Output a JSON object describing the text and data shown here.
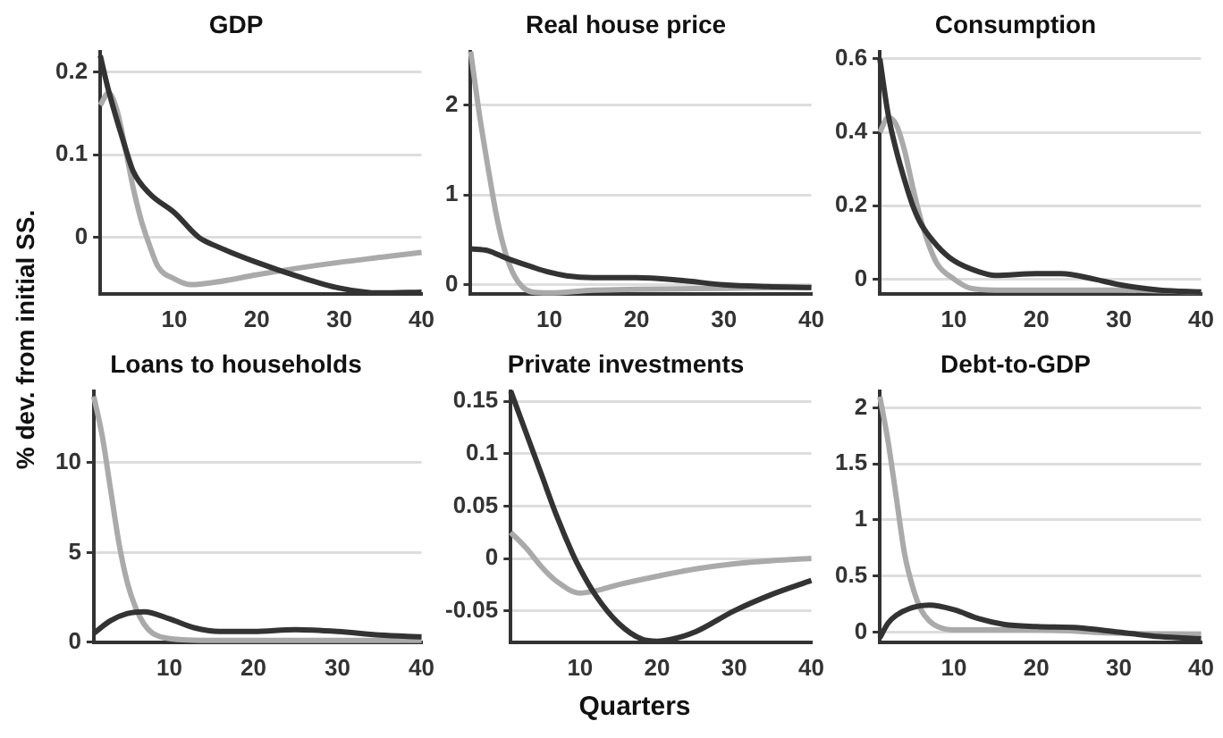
{
  "chart_data": [
    {
      "type": "line",
      "title": "GDP",
      "xlim": [
        1,
        40
      ],
      "xticks": [
        10,
        20,
        30,
        40
      ],
      "ylim": [
        -0.068,
        0.225
      ],
      "yticks": [
        0,
        0.1,
        0.2
      ],
      "grid": "y",
      "marker": "none",
      "series": [
        {
          "color": "#333333",
          "x": [
            1,
            2,
            4,
            5,
            7,
            10,
            13,
            15,
            20,
            25,
            30,
            35,
            40
          ],
          "values": [
            0.22,
            0.178,
            0.11,
            0.08,
            0.053,
            0.03,
            0.0,
            -0.01,
            -0.03,
            -0.047,
            -0.061,
            -0.067,
            -0.066
          ]
        },
        {
          "color": "#aaaaaa",
          "x": [
            1,
            2,
            3,
            4,
            5,
            6,
            7,
            8,
            10,
            12,
            15,
            20,
            25,
            30,
            35,
            40
          ],
          "values": [
            0.16,
            0.175,
            0.155,
            0.11,
            0.06,
            0.02,
            -0.01,
            -0.035,
            -0.05,
            -0.057,
            -0.054,
            -0.045,
            -0.037,
            -0.03,
            -0.024,
            -0.018
          ]
        }
      ]
    },
    {
      "type": "line",
      "title": "Real house price",
      "xlim": [
        1,
        40
      ],
      "xticks": [
        10,
        20,
        30,
        40
      ],
      "ylim": [
        -0.1,
        2.6
      ],
      "yticks": [
        0,
        1,
        2
      ],
      "grid": "y",
      "marker": "none",
      "series": [
        {
          "color": "#333333",
          "x": [
            1,
            3,
            5,
            8,
            10,
            12,
            15,
            20,
            25,
            30,
            35,
            40
          ],
          "values": [
            0.4,
            0.38,
            0.3,
            0.2,
            0.14,
            0.1,
            0.08,
            0.08,
            0.05,
            0.0,
            -0.02,
            -0.03
          ]
        },
        {
          "color": "#aaaaaa",
          "x": [
            1,
            2,
            3,
            4,
            5,
            6,
            7,
            8,
            10,
            15,
            20,
            30,
            40
          ],
          "values": [
            2.6,
            1.9,
            1.3,
            0.75,
            0.35,
            0.1,
            -0.03,
            -0.08,
            -0.09,
            -0.06,
            -0.05,
            -0.04,
            -0.03
          ]
        }
      ]
    },
    {
      "type": "line",
      "title": "Consumption",
      "xlim": [
        1,
        40
      ],
      "xticks": [
        10,
        20,
        30,
        40
      ],
      "ylim": [
        -0.04,
        0.62
      ],
      "yticks": [
        0,
        0.2,
        0.4,
        0.6
      ],
      "grid": "y",
      "marker": "none",
      "series": [
        {
          "color": "#333333",
          "x": [
            1,
            2,
            3,
            4,
            5,
            6,
            8,
            10,
            13,
            15,
            20,
            23,
            27,
            30,
            35,
            40
          ],
          "values": [
            0.6,
            0.45,
            0.35,
            0.27,
            0.2,
            0.15,
            0.09,
            0.05,
            0.02,
            0.01,
            0.015,
            0.015,
            0.0,
            -0.015,
            -0.03,
            -0.035
          ]
        },
        {
          "color": "#aaaaaa",
          "x": [
            1,
            2,
            3,
            4,
            5,
            6,
            7,
            8,
            10,
            12,
            15,
            20,
            30,
            40
          ],
          "values": [
            0.4,
            0.44,
            0.42,
            0.35,
            0.25,
            0.16,
            0.09,
            0.04,
            0.0,
            -0.025,
            -0.03,
            -0.03,
            -0.03,
            -0.035
          ]
        }
      ]
    },
    {
      "type": "line",
      "title": "Loans to households",
      "ylabel": "% dev. from initial SS.",
      "xlim": [
        1,
        40
      ],
      "xticks": [
        10,
        20,
        30,
        40
      ],
      "ylim": [
        0,
        14
      ],
      "yticks": [
        0,
        5,
        10
      ],
      "grid": "y",
      "marker": "none",
      "series": [
        {
          "color": "#333333",
          "x": [
            1,
            3,
            5,
            7,
            10,
            13,
            16,
            20,
            25,
            30,
            35,
            40
          ],
          "values": [
            0.5,
            1.2,
            1.6,
            1.7,
            1.3,
            0.8,
            0.6,
            0.6,
            0.7,
            0.6,
            0.4,
            0.3
          ]
        },
        {
          "color": "#aaaaaa",
          "x": [
            1,
            2,
            3,
            4,
            5,
            6,
            7,
            8,
            10,
            15,
            20,
            30,
            40
          ],
          "values": [
            13.7,
            11.5,
            8.5,
            5.5,
            3.3,
            1.9,
            1.0,
            0.5,
            0.2,
            0.1,
            0.1,
            0.1,
            0.1
          ]
        }
      ]
    },
    {
      "type": "line",
      "title": "Private investments",
      "xlabel": "Quarters",
      "xlim": [
        1,
        40
      ],
      "xticks": [
        10,
        20,
        30,
        40
      ],
      "ylim": [
        -0.08,
        0.16
      ],
      "yticks": [
        -0.05,
        0,
        0.05,
        0.1,
        0.15
      ],
      "grid": "y",
      "marker": "none",
      "series": [
        {
          "color": "#333333",
          "x": [
            1,
            3,
            5,
            7,
            9,
            10,
            12,
            15,
            18,
            20,
            22,
            25,
            30,
            35,
            40
          ],
          "values": [
            0.16,
            0.12,
            0.08,
            0.04,
            0.005,
            -0.01,
            -0.035,
            -0.062,
            -0.077,
            -0.079,
            -0.077,
            -0.07,
            -0.05,
            -0.034,
            -0.021
          ]
        },
        {
          "color": "#aaaaaa",
          "x": [
            1,
            3,
            5,
            7,
            10,
            12,
            15,
            20,
            25,
            30,
            35,
            40
          ],
          "values": [
            0.025,
            0.01,
            -0.008,
            -0.022,
            -0.033,
            -0.031,
            -0.025,
            -0.017,
            -0.01,
            -0.005,
            -0.002,
            0.0
          ]
        }
      ]
    },
    {
      "type": "line",
      "title": "Debt-to-GDP",
      "xlim": [
        1,
        40
      ],
      "xticks": [
        10,
        20,
        30,
        40
      ],
      "ylim": [
        -0.09,
        2.15
      ],
      "yticks": [
        0,
        0.5,
        1,
        1.5,
        2
      ],
      "grid": "y",
      "marker": "none",
      "series": [
        {
          "color": "#333333",
          "x": [
            1,
            2,
            3,
            5,
            7,
            10,
            13,
            16,
            20,
            25,
            30,
            35,
            40
          ],
          "values": [
            -0.05,
            0.08,
            0.15,
            0.22,
            0.24,
            0.2,
            0.12,
            0.07,
            0.05,
            0.04,
            0.0,
            -0.04,
            -0.06
          ]
        },
        {
          "color": "#aaaaaa",
          "x": [
            1,
            2,
            3,
            4,
            5,
            6,
            7,
            8,
            10,
            20,
            30,
            40
          ],
          "values": [
            2.1,
            1.7,
            1.2,
            0.7,
            0.4,
            0.2,
            0.1,
            0.05,
            0.02,
            0.02,
            -0.01,
            -0.02
          ]
        }
      ]
    }
  ]
}
